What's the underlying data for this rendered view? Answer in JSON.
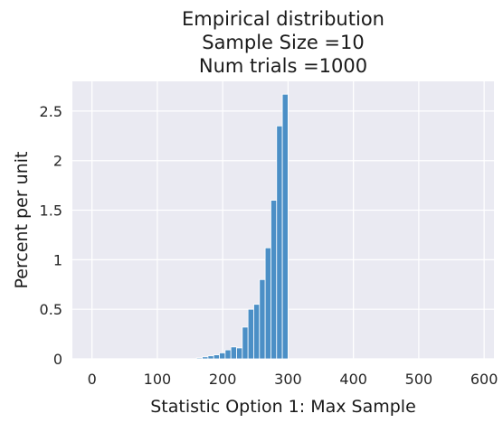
{
  "chart_data": {
    "type": "bar",
    "title_lines": [
      "Empirical distribution",
      "Sample Size =10",
      "Num trials =1000"
    ],
    "xlabel": "Statistic Option 1: Max Sample",
    "ylabel": "Percent per unit",
    "xlim": [
      -30,
      615
    ],
    "ylim": [
      0,
      2.8
    ],
    "xticks": [
      0,
      100,
      200,
      300,
      400,
      500,
      600
    ],
    "yticks": [
      0,
      0.5,
      1,
      1.5,
      2,
      2.5
    ],
    "ytick_labels": [
      "0",
      "0.5",
      "1",
      "1.5",
      "2",
      "2.5"
    ],
    "grid": true,
    "bar_color": "#4b8fc6",
    "background": "#eaeaf2",
    "bins": [
      {
        "x0": 160,
        "x1": 168.75,
        "value": 0.01
      },
      {
        "x0": 168.75,
        "x1": 177.5,
        "value": 0.02
      },
      {
        "x0": 177.5,
        "x1": 186.25,
        "value": 0.03
      },
      {
        "x0": 186.25,
        "x1": 195,
        "value": 0.04
      },
      {
        "x0": 195,
        "x1": 203.75,
        "value": 0.06
      },
      {
        "x0": 203.75,
        "x1": 212.5,
        "value": 0.09
      },
      {
        "x0": 212.5,
        "x1": 221.25,
        "value": 0.12
      },
      {
        "x0": 221.25,
        "x1": 230,
        "value": 0.11
      },
      {
        "x0": 230,
        "x1": 238.75,
        "value": 0.32
      },
      {
        "x0": 238.75,
        "x1": 247.5,
        "value": 0.5
      },
      {
        "x0": 247.5,
        "x1": 256.25,
        "value": 0.55
      },
      {
        "x0": 256.25,
        "x1": 265,
        "value": 0.8
      },
      {
        "x0": 265,
        "x1": 273.75,
        "value": 1.12
      },
      {
        "x0": 273.75,
        "x1": 282.5,
        "value": 1.6
      },
      {
        "x0": 282.5,
        "x1": 291.25,
        "value": 2.35
      },
      {
        "x0": 291.25,
        "x1": 300,
        "value": 2.67
      }
    ]
  }
}
